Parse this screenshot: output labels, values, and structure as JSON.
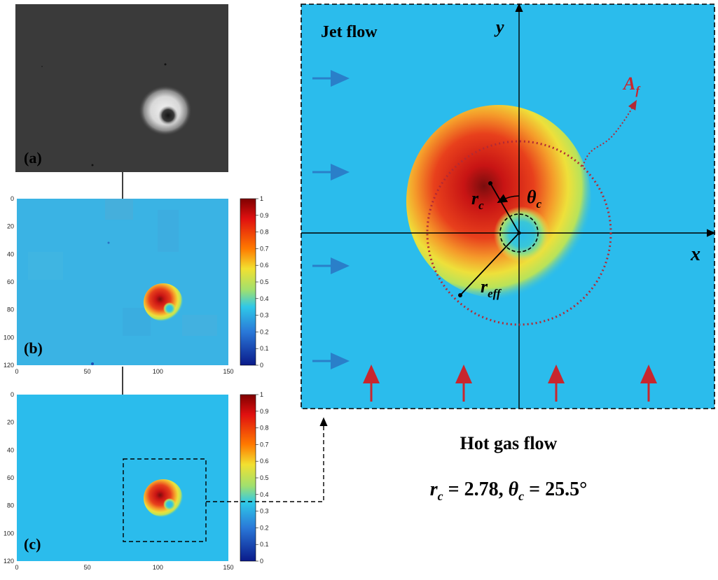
{
  "panels": {
    "a_label": "(a)",
    "b_label": "(b)",
    "c_label": "(c)"
  },
  "heatmap_axes": {
    "y_ticks": [
      "0",
      "20",
      "40",
      "60",
      "80",
      "100",
      "120"
    ],
    "x_ticks": [
      "0",
      "50",
      "100",
      "150"
    ],
    "colorbar_ticks": [
      "1",
      "0.9",
      "0.8",
      "0.7",
      "0.6",
      "0.5",
      "0.4",
      "0.3",
      "0.2",
      "0.1",
      "0"
    ]
  },
  "schematic": {
    "jet_flow_label": "Jet flow",
    "hot_gas_flow_label": "Hot gas flow",
    "x_axis_label": "x",
    "y_axis_label": "y",
    "af_label": {
      "main": "A",
      "sub": "f"
    },
    "rc_label": {
      "main": "r",
      "sub": "c"
    },
    "theta_label": {
      "main": "θ",
      "sub": "c"
    },
    "reff_label": {
      "main": "r",
      "sub": "eff"
    },
    "result": {
      "rc_main": "r",
      "rc_sub": "c",
      "rc_value": " = 2.78,",
      "theta_main": "θ",
      "theta_sub": "c",
      "theta_value": " = 25.5°"
    }
  },
  "colors": {
    "background_field": "#2bbcec",
    "jet_arrow": "#2a7fc9",
    "hot_arrow": "#c8262e",
    "af_circle": "#b22a35",
    "photo_bg": "#3a3a3a"
  }
}
